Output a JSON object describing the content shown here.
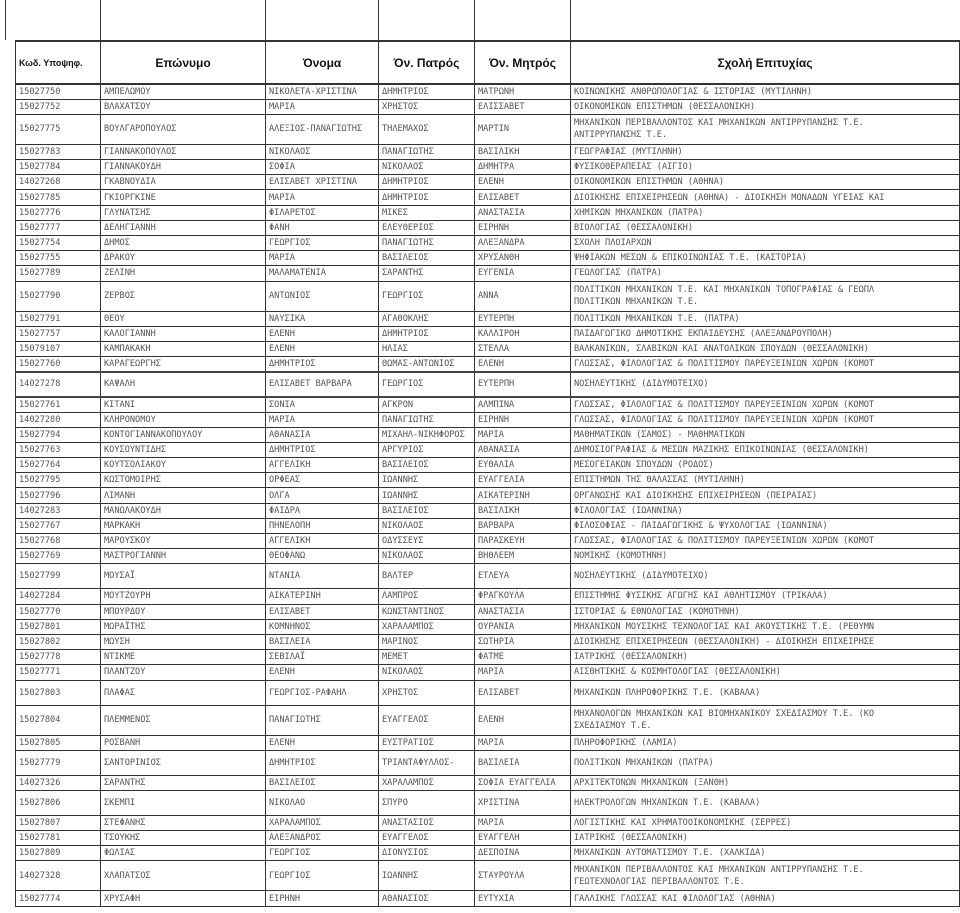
{
  "headers": {
    "code": "Κωδ. Υποψηφ.",
    "surname": "Επώνυμο",
    "name": "Όνομα",
    "father": "Όν. Πατρός",
    "mother": "Όν. Μητρός",
    "school": "Σχολή Επιτυχίας"
  },
  "rows": [
    [
      "15027750",
      "ΑΜΠΕΛΩΜΟΥ",
      "ΝΙΚΟΛΕΤΑ-ΧΡΙΣΤΙΝΑ",
      "ΔΗΜΗΤΡΙΟΣ",
      "ΜΑΤΡΩΝΗ",
      "ΚΟΙΝΩΝΙΚΗΣ ΑΝΘΡΩΠΟΛΟΓΙΑΣ & ΙΣΤΟΡΙΑΣ (ΜΥΤΙΛΗΝΗ)"
    ],
    [
      "15027752",
      "ΒΛΑΧΑΤΣΟΥ",
      "ΜΑΡΙΑ",
      "ΧΡΗΣΤΟΣ",
      "ΕΛΙΣΣΑΒΕΤ",
      "ΟΙΚΟΝΟΜΙΚΩΝ ΕΠΙΣΤΗΜΩΝ (ΘΕΣΣΑΛΟΝΙΚΗ)"
    ],
    [
      "15027775",
      "ΒΟΥΛΓΑΡΟΠΟΥΛΟΣ",
      "ΑΛΕΞΙΟΣ-ΠΑΝΑΓΙΩΤΗΣ",
      "ΤΗΛΕΜΑΧΟΣ",
      "ΜΑΡΤΙΝ",
      "ΜΗΧΑΝΙΚΩΝ ΠΕΡΙΒΑΛΛΟΝΤΟΣ ΚΑΙ ΜΗΧΑΝΙΚΩΝ ΑΝΤΙΡΡΥΠΑΝΣΗΣ Τ.Ε.\nΑΝΤΙΡΡΥΠΑΝΣΗΣ Τ.Ε."
    ],
    [
      "15027783",
      "ΓΙΑΝΝΑΚΟΠΟΥΛΟΣ",
      "ΝΙΚΟΛΑΟΣ",
      "ΠΑΝΑΓΙΩΤΗΣ",
      "ΒΑΣΙΛΙΚΗ",
      "ΓΕΩΓΡΑΦΙΑΣ (ΜΥΤΙΛΗΝΗ)"
    ],
    [
      "15027784",
      "ΓΙΑΝΝΑΚΟΥΔΗ",
      "ΣΟΦΙΑ",
      "ΝΙΚΟΛΑΟΣ",
      "ΔΗΜΗΤΡΑ",
      "ΦΥΣΙΚΟΘΕΡΑΠΕΙΑΣ (ΑΙΓΙΟ)"
    ],
    [
      "14027268",
      "ΓΚΑΒΝΟΥΔΙΑ",
      "ΕΛΙΣΑΒΕΤ ΧΡΙΣΤΙΝΑ",
      "ΔΗΜΗΤΡΙΟΣ",
      "ΕΛΕΝΗ",
      "ΟΙΚΟΝΟΜΙΚΩΝ ΕΠΙΣΤΗΜΩΝ (ΑΘΗΝΑ)"
    ],
    [
      "15027785",
      "ΓΚΙΟΡΓΚΙΝΕ",
      "ΜΑΡΙΑ",
      "ΔΗΜΗΤΡΙΟΣ",
      "ΕΛΙΣΑΒΕΤ",
      "ΔΙΟΙΚΗΣΗΣ ΕΠΙΧΕΙΡΗΣΕΩΝ (ΑΘΗΝΑ) - ΔΙΟΙΚΗΣΗ ΜΟΝΑΔΩΝ ΥΓΕΙΑΣ ΚΑΙ"
    ],
    [
      "15027776",
      "ΓΛΥΝΑΤΣΗΣ",
      "ΦΙΛΑΡΕΤΟΣ",
      "ΜΙΚΕΣ",
      "ΑΝΑΣΤΑΣΙΑ",
      "ΧΗΜΙΚΩΝ ΜΗΧΑΝΙΚΩΝ (ΠΑΤΡΑ)"
    ],
    [
      "15027777",
      "ΔΕΛΗΓΙΑΝΝΗ",
      "ΦΑΝΗ",
      "ΕΛΕΥΘΕΡΙΟΣ",
      "ΕΙΡΗΝΗ",
      "ΒΙΟΛΟΓΙΑΣ (ΘΕΣΣΑΛΟΝΙΚΗ)"
    ],
    [
      "15027754",
      "ΔΗΜΟΣ",
      "ΓΕΩΡΓΙΟΣ",
      "ΠΑΝΑΓΙΩΤΗΣ",
      "ΑΛΕΞΑΝΔΡΑ",
      "ΣΧΟΛΗ ΠΛΟΙΑΡΧΩΝ"
    ],
    [
      "15027755",
      "ΔΡΑΚΟΥ",
      "ΜΑΡΙΑ",
      "ΒΑΣΙΛΕΙΟΣ",
      "ΧΡΥΣΑΝΘΗ",
      "ΨΗΦΙΑΚΩΝ ΜΕΣΩΝ & ΕΠΙΚΟΙΝΩΝΙΑΣ Τ.Ε. (ΚΑΣΤΟΡΙΑ)"
    ],
    [
      "15027789",
      "ΖΕΛΙΝΗ",
      "ΜΑΛΑΜΑΤΕΝΙΑ",
      "ΣΑΡΑΝΤΗΣ",
      "ΕΥΓΕΝΙΑ",
      "ΓΕΩΛΟΓΙΑΣ (ΠΑΤΡΑ)"
    ],
    [
      "15027790",
      "ΖΕΡΒΟΣ",
      "ΑΝΤΩΝΙΟΣ",
      "ΓΕΩΡΓΙΟΣ",
      "ΑΝΝΑ",
      "ΠΟΛΙΤΙΚΩΝ ΜΗΧΑΝΙΚΩΝ Τ.Ε. ΚΑΙ ΜΗΧΑΝΙΚΩΝ ΤΟΠΟΓΡΑΦΙΑΣ & ΓΕΩΠΛ\nΠΟΛΙΤΙΚΩΝ ΜΗΧΑΝΙΚΩΝ Τ.Ε."
    ],
    [
      "15027791",
      "ΘΕΟΥ",
      "ΝΑΥΣΙΚΑ",
      "ΑΓΑΘΟΚΛΗΣ",
      "ΕΥΤΕΡΠΗ",
      "ΠΟΛΙΤΙΚΩΝ ΜΗΧΑΝΙΚΩΝ Τ.Ε. (ΠΑΤΡΑ)"
    ],
    [
      "15027757",
      "ΚΑΛΟΓΙΑΝΝΗ",
      "ΕΛΕΝΗ",
      "ΔΗΜΗΤΡΙΟΣ",
      "ΚΑΛΛΙΡΟΗ",
      "ΠΑΙΔΑΓΩΓΙΚΟ ΔΗΜΟΤΙΚΗΣ ΕΚΠΑΙΔΕΥΣΗΣ (ΑΛΕΞΑΝΔΡΟΥΠΟΛΗ)"
    ],
    [
      "15079107",
      "ΚΑΜΠΑΚΑΚΗ",
      "ΕΛΕΝΗ",
      "ΗΛΙΑΣ",
      "ΣΤΕΛΛΑ",
      "ΒΑΛΚΑΝΙΚΩΝ, ΣΛΑΒΙΚΩΝ ΚΑΙ ΑΝΑΤΟΛΙΚΩΝ ΣΠΟΥΔΩΝ (ΘΕΣΣΑΛΟΝΙΚΗ)"
    ],
    [
      "15027760",
      "ΚΑΡΑΓΕΩΡΓΗΣ",
      "ΔΗΜΗΤΡΙΟΣ",
      "ΘΩΜΑΣ-ΑΝΤΩΝΙΟΣ",
      "ΕΛΕΝΗ",
      "ΓΛΩΣΣΑΣ, ΦΙΛΟΛΟΓΙΑΣ & ΠΟΛΙΤΙΣΜΟΥ ΠΑΡΕΥΞΕΙΝΙΩΝ ΧΩΡΩΝ (ΚΟΜΟΤ"
    ],
    [
      "14027278",
      "ΚΑΨΑΛΗ",
      "ΕΛΙΣΑΒΕΤ ΒΑΡΒΑΡΑ",
      "ΓΕΩΡΓΙΟΣ",
      "ΕΥΤΕΡΠΗ",
      "ΝΟΣΗΛΕΥΤΙΚΗΣ (ΔΙΔΥΜΟΤΕΙΧΟ)"
    ],
    [
      "15027761",
      "ΚΙΤΑΝΙ",
      "ΣΟΝΙΑ",
      "ΑΓΚΡΟΝ",
      "ΑΛΜΠΙΝΑ",
      "ΓΛΩΣΣΑΣ, ΦΙΛΟΛΟΓΙΑΣ & ΠΟΛΙΤΙΣΜΟΥ ΠΑΡΕΥΞΕΙΝΙΩΝ ΧΩΡΩΝ (ΚΟΜΟΤ"
    ],
    [
      "14027280",
      "ΚΛΗΡΟΝΟΜΟΥ",
      "ΜΑΡΙΑ",
      "ΠΑΝΑΓΙΩΤΗΣ",
      "ΕΙΡΗΝΗ",
      "ΓΛΩΣΣΑΣ, ΦΙΛΟΛΟΓΙΑΣ & ΠΟΛΙΤΙΣΜΟΥ ΠΑΡΕΥΞΕΙΝΙΩΝ ΧΩΡΩΝ (ΚΟΜΟΤ"
    ],
    [
      "15027794",
      "ΚΟΝΤΟΓΙΑΝΝΑΚΟΠΟΥΛΟΥ",
      "ΑΘΑΝΑΣΙΑ",
      "ΜΙΧΑΗΛ-ΝΙΚΗΦΟΡΟΣ",
      "ΜΑΡΙΑ",
      "ΜΑΘΗΜΑΤΙΚΩΝ (ΣΑΜΟΣ) - ΜΑΘΗΜΑΤΙΚΩΝ"
    ],
    [
      "15027763",
      "ΚΟΥΣΟΥΝΤΙΔΗΣ",
      "ΔΗΜΗΤΡΙΟΣ",
      "ΑΡΓΥΡΙΟΣ",
      "ΑΘΑΝΑΣΙΑ",
      "ΔΗΜΟΣΙΟΓΡΑΦΙΑΣ & ΜΕΣΩΝ ΜΑΖΙΚΗΣ ΕΠΙΚΟΙΝΩΝΙΑΣ (ΘΕΣΣΑΛΟΝΙΚΗ)"
    ],
    [
      "15027764",
      "ΚΟΥΤΣΟΛΙΑΚΟΥ",
      "ΑΓΓΕΛΙΚΗ",
      "ΒΑΣΙΛΕΙΟΣ",
      "ΕΥΘΑΛΙΑ",
      "ΜΕΣΟΓΕΙΑΚΩΝ ΣΠΟΥΔΩΝ (ΡΟΔΟΣ)"
    ],
    [
      "15027795",
      "ΚΩΣΤΟΜΟΙΡΗΣ",
      "ΟΡΦΕΑΣ",
      "ΙΩΑΝΝΗΣ",
      "ΕΥΑΓΓΕΛΙΑ",
      "ΕΠΙΣΤΗΜΩΝ ΤΗΣ ΘΑΛΑΣΣΑΣ (ΜΥΤΙΛΗΝΗ)"
    ],
    [
      "15027796",
      "ΛΙΜΑΝΗ",
      "ΟΛΓΑ",
      "ΙΩΑΝΝΗΣ",
      "ΑΙΚΑΤΕΡΙΝΗ",
      "ΟΡΓΑΝΩΣΗΣ ΚΑΙ ΔΙΟΙΚΗΣΗΣ ΕΠΙΧΕΙΡΗΣΕΩΝ (ΠΕΙΡΑΙΑΣ)"
    ],
    [
      "14027283",
      "ΜΑΝΩΛΑΚΟΥΔΗ",
      "ΦΑΙΔΡΑ",
      "ΒΑΣΙΛΕΙΟΣ",
      "ΒΑΣΙΛΙΚΗ",
      "ΦΙΛΟΛΟΓΙΑΣ (ΙΩΑΝΝΙΝΑ)"
    ],
    [
      "15027767",
      "ΜΑΡΚΑΚΗ",
      "ΠΗΝΕΛΟΠΗ",
      "ΝΙΚΟΛΑΟΣ",
      "ΒΑΡΒΑΡΑ",
      "ΦΙΛΟΣΟΦΙΑΣ - ΠΑΙΔΑΓΩΓΙΚΗΣ & ΨΥΧΟΛΟΓΙΑΣ (ΙΩΑΝΝΙΝΑ)"
    ],
    [
      "15027768",
      "ΜΑΡΟΥΣΚΟΥ",
      "ΑΓΓΕΛΙΚΗ",
      "ΟΔΥΣΣΕΥΣ",
      "ΠΑΡΑΣΚΕΥΗ",
      "ΓΛΩΣΣΑΣ, ΦΙΛΟΛΟΓΙΑΣ & ΠΟΛΙΤΙΣΜΟΥ ΠΑΡΕΥΞΕΙΝΙΩΝ ΧΩΡΩΝ (ΚΟΜΟΤ"
    ],
    [
      "15027769",
      "ΜΑΣΤΡΟΓΙΑΝΝΗ",
      "ΘΕΟΦΑΝΩ",
      "ΝΙΚΟΛΑΟΣ",
      "ΒΗΘΛΕΕΜ",
      "ΝΟΜΙΚΗΣ (ΚΟΜΟΤΗΝΗ)"
    ],
    [
      "15027799",
      "ΜΟΥΣΑΪ",
      "ΝΤΑΝΙΑ",
      "ΒΑΛΤΕΡ",
      "ΕΤΛΕΥΑ",
      "ΝΟΣΗΛΕΥΤΙΚΗΣ (ΔΙΔΥΜΟΤΕΙΧΟ)"
    ],
    [
      "14027284",
      "ΜΟΥΤΖΟΥΡΗ",
      "ΑΙΚΑΤΕΡΙΝΗ",
      "ΛΑΜΠΡΟΣ",
      "ΦΡΑΓΚΟΥΛΑ",
      "ΕΠΙΣΤΗΜΗΣ ΦΥΣΙΚΗΣ ΑΓΩΓΗΣ ΚΑΙ ΑΘΛΗΤΙΣΜΟΥ (ΤΡΙΚΑΛΑ)"
    ],
    [
      "15027770",
      "ΜΠΟΥΡΔΟΥ",
      "ΕΛΙΣΑΒΕΤ",
      "ΚΩΝΣΤΑΝΤΙΝΟΣ",
      "ΑΝΑΣΤΑΣΙΑ",
      "ΙΣΤΟΡΙΑΣ & ΕΘΝΟΛΟΓΙΑΣ (ΚΟΜΟΤΗΝΗ)"
    ],
    [
      "15027801",
      "ΜΩΡΑΪΤΗΣ",
      "ΚΟΜΝΗΝΟΣ",
      "ΧΑΡΑΛΑΜΠΟΣ",
      "ΟΥΡΑΝΙΑ",
      "ΜΗΧΑΝΙΚΩΝ ΜΟΥΣΙΚΗΣ ΤΕΧΝΟΛΟΓΙΑΣ ΚΑΙ ΑΚΟΥΣΤΙΚΗΣ Τ.Ε. (ΡΕΘΥΜΝ"
    ],
    [
      "15027802",
      "ΜΩΥΣΗ",
      "ΒΑΣΙΛΕΙΑ",
      "ΜΑΡΙΝΟΣ",
      "ΣΩΤΗΡΙΑ",
      "ΔΙΟΙΚΗΣΗΣ ΕΠΙΧΕΙΡΗΣΕΩΝ (ΘΕΣΣΑΛΟΝΙΚΗ) - ΔΙΟΙΚΗΣΗ ΕΠΙΧΕΙΡΗΣΕ"
    ],
    [
      "15027778",
      "ΝΤΙΚΜΕ",
      "ΣΕΒΙΛΑΪ",
      "ΜΕΜΕΤ",
      "ΦΑΤΜΕ",
      "ΙΑΤΡΙΚΗΣ (ΘΕΣΣΑΛΟΝΙΚΗ)"
    ],
    [
      "15027771",
      "ΠΛΑΝΤΖΟΥ",
      "ΕΛΕΝΗ",
      "ΝΙΚΟΛΑΟΣ",
      "ΜΑΡΙΑ",
      "ΑΙΣΘΗΤΙΚΗΣ & ΚΟΣΜΗΤΟΛΟΓΙΑΣ (ΘΕΣΣΑΛΟΝΙΚΗ)"
    ],
    [
      "15027803",
      "ΠΛΑΦΑΣ",
      "ΓΕΩΡΓΙΟΣ-ΡΑΦΑΗΛ",
      "ΧΡΗΣΤΟΣ",
      "ΕΛΙΣΑΒΕΤ",
      "ΜΗΧΑΝΙΚΩΝ ΠΛΗΡΟΦΟΡΙΚΗΣ Τ.Ε. (ΚΑΒΑΛΑ)"
    ],
    [
      "15027804",
      "ΠΛΕΜΜΕΝΟΣ",
      "ΠΑΝΑΓΙΩΤΗΣ",
      "ΕΥΑΓΓΕΛΟΣ",
      "ΕΛΕΝΗ",
      "ΜΗΧΑΝΟΛΟΓΩΝ ΜΗΧΑΝΙΚΩΝ ΚΑΙ ΒΙΟΜΗΧΑΝΙΚΟΥ ΣΧΕΔΙΑΣΜΟΥ Τ.Ε. (ΚΟ\nΣΧΕΔΙΑΣΜΟΥ Τ.Ε."
    ],
    [
      "15027805",
      "ΡΟΣΒΑΝΗ",
      "ΕΛΕΝΗ",
      "ΕΥΣΤΡΑΤΙΟΣ",
      "ΜΑΡΙΑ",
      "ΠΛΗΡΟΦΟΡΙΚΗΣ (ΛΑΜΙΑ)"
    ],
    [
      "15027779",
      "ΣΑΝΤΟΡΙΝΙΟΣ",
      "ΔΗΜΗΤΡΙΟΣ",
      "ΤΡΙΑΝΤΑΦΥΛΛΟΣ-",
      "ΒΑΣΙΛΕΙΑ",
      "ΠΟΛΙΤΙΚΩΝ ΜΗΧΑΝΙΚΩΝ (ΠΑΤΡΑ)"
    ],
    [
      "14027326",
      "ΣΑΡΑΝΤΗΣ",
      "ΒΑΣΙΛΕΙΟΣ",
      "ΧΑΡΑΛΑΜΠΟΣ",
      "ΣΟΦΙΑ ΕΥΑΓΓΕΛΙΑ",
      "ΑΡΧΙΤΕΚΤΟΝΩΝ ΜΗΧΑΝΙΚΩΝ (ΞΑΝΘΗ)"
    ],
    [
      "15027806",
      "ΣΚΕΜΠΙ",
      "ΝΙΚΟΛΑΟ",
      "ΣΠΥΡΟ",
      "ΧΡΙΣΤΙΝΑ",
      "ΗΛΕΚΤΡΟΛΟΓΩΝ ΜΗΧΑΝΙΚΩΝ Τ.Ε. (ΚΑΒΑΛΑ)"
    ],
    [
      "15027807",
      "ΣΤΕΦΑΝΗΣ",
      "ΧΑΡΑΛΑΜΠΟΣ",
      "ΑΝΑΣΤΑΣΙΟΣ",
      "ΜΑΡΙΑ",
      "ΛΟΓΙΣΤΙΚΗΣ ΚΑΙ ΧΡΗΜΑΤΟΟΙΚΟΝΟΜΙΚΗΣ (ΣΕΡΡΕΣ)"
    ],
    [
      "15027781",
      "ΤΣΟΥΚΗΣ",
      "ΑΛΕΞΑΝΔΡΟΣ",
      "ΕΥΑΓΓΕΛΟΣ",
      "ΕΥΑΓΓΕΛΗ",
      "ΙΑΤΡΙΚΗΣ (ΘΕΣΣΑΛΟΝΙΚΗ)"
    ],
    [
      "15027809",
      "ΦΩΛΙΑΣ",
      "ΓΕΩΡΓΙΟΣ",
      "ΔΙΟΝΥΣΙΟΣ",
      "ΔΕΣΠΟΙΝΑ",
      "ΜΗΧΑΝΙΚΩΝ ΑΥΤΟΜΑΤΙΣΜΟΥ Τ.Ε. (ΧΑΛΚΙΔΑ)"
    ],
    [
      "14027328",
      "ΧΛΑΠΑΤΣΟΣ",
      "ΓΕΩΡΓΙΟΣ",
      "ΙΩΑΝΝΗΣ",
      "ΣΤΑΥΡΟΥΛΑ",
      "ΜΗΧΑΝΙΚΩΝ ΠΕΡΙΒΑΛΛΟΝΤΟΣ ΚΑΙ ΜΗΧΑΝΙΚΩΝ ΑΝΤΙΡΡΥΠΑΝΣΗΣ Τ.Ε.\nΓΕΩΤΕΧΝΟΛΟΓΙΑΣ ΠΕΡΙΒΑΛΛΟΝΤΟΣ Τ.Ε."
    ],
    [
      "15027774",
      "ΧΡΥΣΑΦΗ",
      "ΕΙΡΗΝΗ",
      "ΑΘΑΝΑΣΙΟΣ",
      "ΕΥΤΥΧΙΑ",
      "ΓΑΛΛΙΚΗΣ ΓΛΩΣΣΑΣ ΚΑΙ ΦΙΛΟΛΟΓΙΑΣ (ΑΘΗΝΑ)"
    ]
  ]
}
